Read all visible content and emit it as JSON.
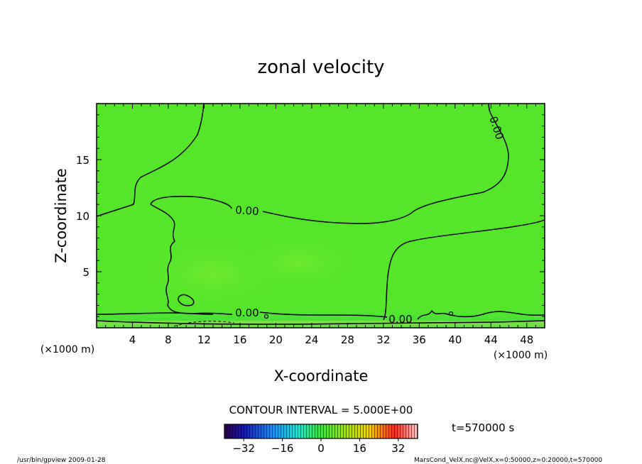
{
  "chart_data": {
    "type": "heatmap",
    "title": "zonal velocity",
    "xlabel": "X-coordinate",
    "ylabel": "Z-coordinate",
    "x_unit_label": "(×1000 m)",
    "y_unit_label": "(×1000 m)",
    "xlim": [
      0,
      50
    ],
    "ylim": [
      0,
      20
    ],
    "x_ticks": [
      "4",
      "8",
      "12",
      "16",
      "20",
      "24",
      "28",
      "32",
      "36",
      "40",
      "44",
      "48"
    ],
    "y_ticks": [
      "5",
      "10",
      "15"
    ],
    "contour_interval_label": "CONTOUR INTERVAL = 5.000E+00",
    "contour_level_labels": [
      "0.00",
      "0.00",
      "0.00",
      "0.00"
    ],
    "colorbar": {
      "range": [
        -40,
        40
      ],
      "tick_labels": [
        "−32",
        "−16",
        "0",
        "16",
        "32"
      ]
    },
    "time_label": "t=570000 s",
    "footer_left": "/usr/bin/gpview   2009-01-28",
    "footer_right": "MarsCond_VelX.nc@VelX,x=0:50000,z=0:20000,t=570000",
    "colors": {
      "field_main": "#55e62a",
      "field_bright": "#6ee832",
      "field_low": "#3fda45",
      "contour": "#000000"
    }
  }
}
